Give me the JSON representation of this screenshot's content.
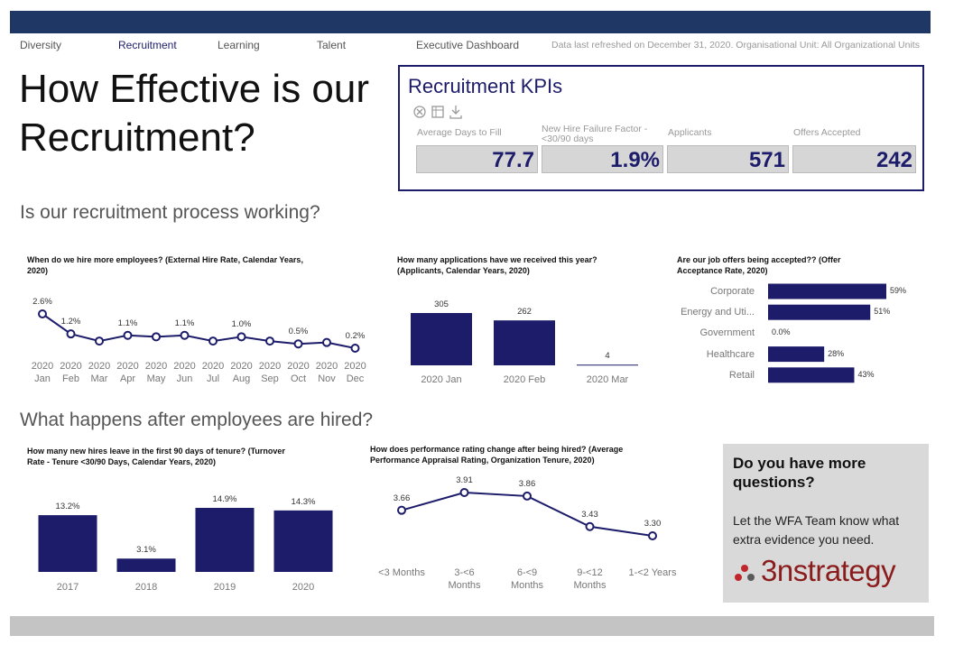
{
  "nav": {
    "items": [
      "Diversity",
      "Recruitment",
      "Learning",
      "Talent",
      "Executive Dashboard"
    ],
    "note": "Data last refreshed on December 31, 2020. Organisational Unit: All Organizational Units"
  },
  "header": {
    "title": "How Effective is our Recruitment?"
  },
  "kpis": {
    "title": "Recruitment KPIs",
    "items": [
      {
        "label": "Average Days to Fill",
        "value": "77.7"
      },
      {
        "label": "New Hire Failure Factor - <30/90 days",
        "value": "1.9%"
      },
      {
        "label": "Applicants",
        "value": "571"
      },
      {
        "label": "Offers Accepted",
        "value": "242"
      }
    ]
  },
  "sections": [
    "Is our recruitment process working?",
    "What happens after employees are hired?"
  ],
  "info": {
    "heading": "Do you have more questions?",
    "text": "Let the WFA Team know what extra evidence you need.",
    "logo": "3nstrategy"
  },
  "chart_data": [
    {
      "type": "line",
      "title": "When do we hire more employees? (External Hire Rate, Calendar Years, 2020)",
      "categories": [
        "2020 Jan",
        "2020 Feb",
        "2020 Mar",
        "2020 Apr",
        "2020 May",
        "2020 Jun",
        "2020 Jul",
        "2020 Aug",
        "2020 Sep",
        "2020 Oct",
        "2020 Nov",
        "2020 Dec"
      ],
      "values": [
        2.6,
        1.2,
        0.7,
        1.1,
        1.0,
        1.1,
        0.7,
        1.0,
        0.7,
        0.5,
        0.6,
        0.2
      ],
      "value_labels": [
        "2.6%",
        "1.2%",
        null,
        "1.1%",
        null,
        "1.1%",
        null,
        "1.0%",
        null,
        "0.5%",
        null,
        "0.2%"
      ],
      "color": "#1c1c6b"
    },
    {
      "type": "bar",
      "title": "How many applications have we received this year? (Applicants, Calendar Years, 2020)",
      "categories": [
        "2020 Jan",
        "2020 Feb",
        "2020 Mar"
      ],
      "values": [
        305,
        262,
        4
      ],
      "color": "#1c1c6b"
    },
    {
      "type": "bar",
      "horizontal": true,
      "title": "Are our job offers being accepted?? (Offer Acceptance Rate, 2020)",
      "categories": [
        "Corporate",
        "Energy and Uti...",
        "Government",
        "Healthcare",
        "Retail"
      ],
      "values": [
        59,
        51,
        0,
        28,
        43
      ],
      "value_labels": [
        "59%",
        "51%",
        "0.0%",
        "28%",
        "43%"
      ],
      "color": "#1c1c6b"
    },
    {
      "type": "bar",
      "title": "How many new hires leave in the first 90 days of tenure? (Turnover Rate - Tenure <30/90 Days, Calendar Years, 2020)",
      "categories": [
        "2017",
        "2018",
        "2019",
        "2020"
      ],
      "values": [
        13.2,
        3.1,
        14.9,
        14.3
      ],
      "value_labels": [
        "13.2%",
        "3.1%",
        "14.9%",
        "14.3%"
      ],
      "color": "#1c1c6b"
    },
    {
      "type": "line",
      "title": "How does performance rating change after being hired? (Average Performance Appraisal Rating, Organization Tenure, 2020)",
      "categories": [
        "<3 Months",
        "3-<6 Months",
        "6-<9 Months",
        "9-<12 Months",
        "1-<2 Years"
      ],
      "values": [
        3.66,
        3.91,
        3.86,
        3.43,
        3.3
      ],
      "value_labels": [
        "3.66",
        "3.91",
        "3.86",
        "3.43",
        "3.30"
      ],
      "color": "#1c1c6b"
    }
  ]
}
